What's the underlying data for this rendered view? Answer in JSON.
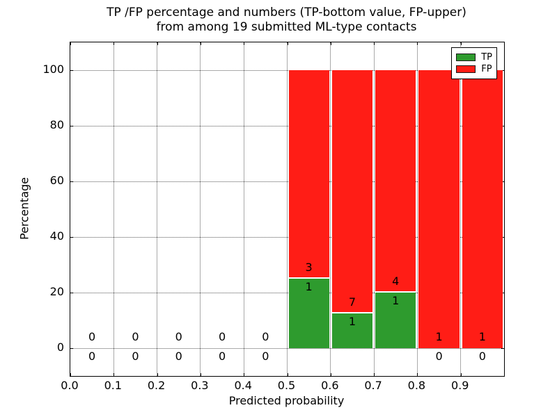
{
  "chart_data": {
    "type": "bar",
    "subtype": "stacked-percentage-histogram",
    "title_line1": "TP /FP percentage and numbers (TP-bottom value, FP-upper)",
    "title_line2": "from among 19 submitted ML-type contacts",
    "xlabel": "Predicted probability",
    "ylabel": "Percentage",
    "total_contacts": 19,
    "xlim": [
      0.0,
      1.0
    ],
    "ylim": [
      -10,
      110
    ],
    "grid": {
      "style": "dotted",
      "color": "#555555",
      "on": true
    },
    "xticks": [
      {
        "value": 0.0,
        "label": "0.0"
      },
      {
        "value": 0.1,
        "label": "0.1"
      },
      {
        "value": 0.2,
        "label": "0.2"
      },
      {
        "value": 0.3,
        "label": "0.3"
      },
      {
        "value": 0.4,
        "label": "0.4"
      },
      {
        "value": 0.5,
        "label": "0.5"
      },
      {
        "value": 0.6,
        "label": "0.6"
      },
      {
        "value": 0.7,
        "label": "0.7"
      },
      {
        "value": 0.8,
        "label": "0.8"
      },
      {
        "value": 0.9,
        "label": "0.9"
      }
    ],
    "yticks": [
      {
        "value": 0,
        "label": "0"
      },
      {
        "value": 20,
        "label": "20"
      },
      {
        "value": 40,
        "label": "40"
      },
      {
        "value": 60,
        "label": "60"
      },
      {
        "value": 80,
        "label": "80"
      },
      {
        "value": 100,
        "label": "100"
      }
    ],
    "legend": {
      "position": "upper-right",
      "entries": [
        {
          "label": "TP",
          "color": "#2e9b2e"
        },
        {
          "label": "FP",
          "color": "#ff1d16"
        }
      ]
    },
    "bins": [
      {
        "range": [
          0.0,
          0.1
        ],
        "tp": 0,
        "fp": 0,
        "tp_pct": 0,
        "fp_pct": 0
      },
      {
        "range": [
          0.1,
          0.2
        ],
        "tp": 0,
        "fp": 0,
        "tp_pct": 0,
        "fp_pct": 0
      },
      {
        "range": [
          0.2,
          0.3
        ],
        "tp": 0,
        "fp": 0,
        "tp_pct": 0,
        "fp_pct": 0
      },
      {
        "range": [
          0.3,
          0.4
        ],
        "tp": 0,
        "fp": 0,
        "tp_pct": 0,
        "fp_pct": 0
      },
      {
        "range": [
          0.4,
          0.5
        ],
        "tp": 0,
        "fp": 0,
        "tp_pct": 0,
        "fp_pct": 0
      },
      {
        "range": [
          0.5,
          0.6
        ],
        "tp": 1,
        "fp": 3,
        "tp_pct": 25,
        "fp_pct": 75
      },
      {
        "range": [
          0.6,
          0.7
        ],
        "tp": 1,
        "fp": 7,
        "tp_pct": 12.5,
        "fp_pct": 87.5
      },
      {
        "range": [
          0.7,
          0.8
        ],
        "tp": 1,
        "fp": 4,
        "tp_pct": 20,
        "fp_pct": 80
      },
      {
        "range": [
          0.8,
          0.9
        ],
        "tp": 0,
        "fp": 1,
        "tp_pct": 0,
        "fp_pct": 100
      },
      {
        "range": [
          0.9,
          1.0
        ],
        "tp": 0,
        "fp": 1,
        "tp_pct": 0,
        "fp_pct": 100
      }
    ]
  }
}
